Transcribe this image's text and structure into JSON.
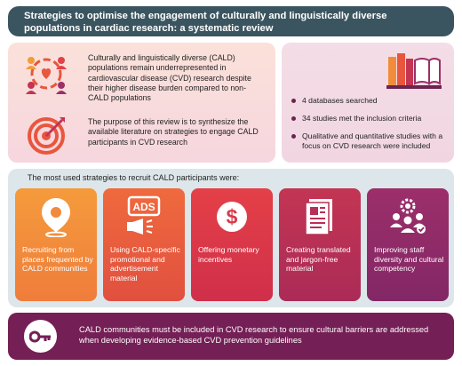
{
  "title": "Strategies to optimise the engagement of culturally and linguistically diverse populations in cardiac research: a systematic review",
  "intro": {
    "paragraph1": "Culturally and linguistically diverse (CALD) populations remain underrepresented in cardiovascular disease (CVD) research despite their higher disease burden compared to non-CALD populations",
    "paragraph2": "The purpose of this review is to synthesize the available literature on strategies to engage CALD participants in CVD research",
    "icon1": "diverse-people-heart-icon",
    "icon2": "target-dart-icon"
  },
  "summary": {
    "icon": "books-icon",
    "bullets": [
      "4 databases searched",
      "34 studies met the inclusion criteria",
      "Qualitative and quantitative studies with a focus on CVD research were included"
    ]
  },
  "strategies": {
    "heading": "The most used strategies to recruit CALD participants were:",
    "cards": [
      {
        "label": "Recruiting from places frequented by CALD communities",
        "icon": "location-pin-icon",
        "color": "#f18a3b"
      },
      {
        "label": "Using CALD-specific promotional and advertisement material",
        "icon": "ads-megaphone-icon",
        "icon_text": "ADS",
        "color": "#e85e3e"
      },
      {
        "label": "Offering monetary incentives",
        "icon": "dollar-coin-icon",
        "color": "#da3849"
      },
      {
        "label": "Creating translated and jargon-free material",
        "icon": "document-icon",
        "color": "#b83055"
      },
      {
        "label": "Improving staff diversity and cultural competency",
        "icon": "team-gear-icon",
        "color": "#902b68"
      }
    ]
  },
  "conclusion": {
    "text": "CALD communities must be included in CVD research to ensure cultural barriers are addressed when developing evidence-based CVD prevention guidelines",
    "icon": "key-icon"
  },
  "colors": {
    "title_bar": "#3b5560",
    "bottom_bar": "#741f55",
    "middle_panel": "#dde6ea"
  }
}
